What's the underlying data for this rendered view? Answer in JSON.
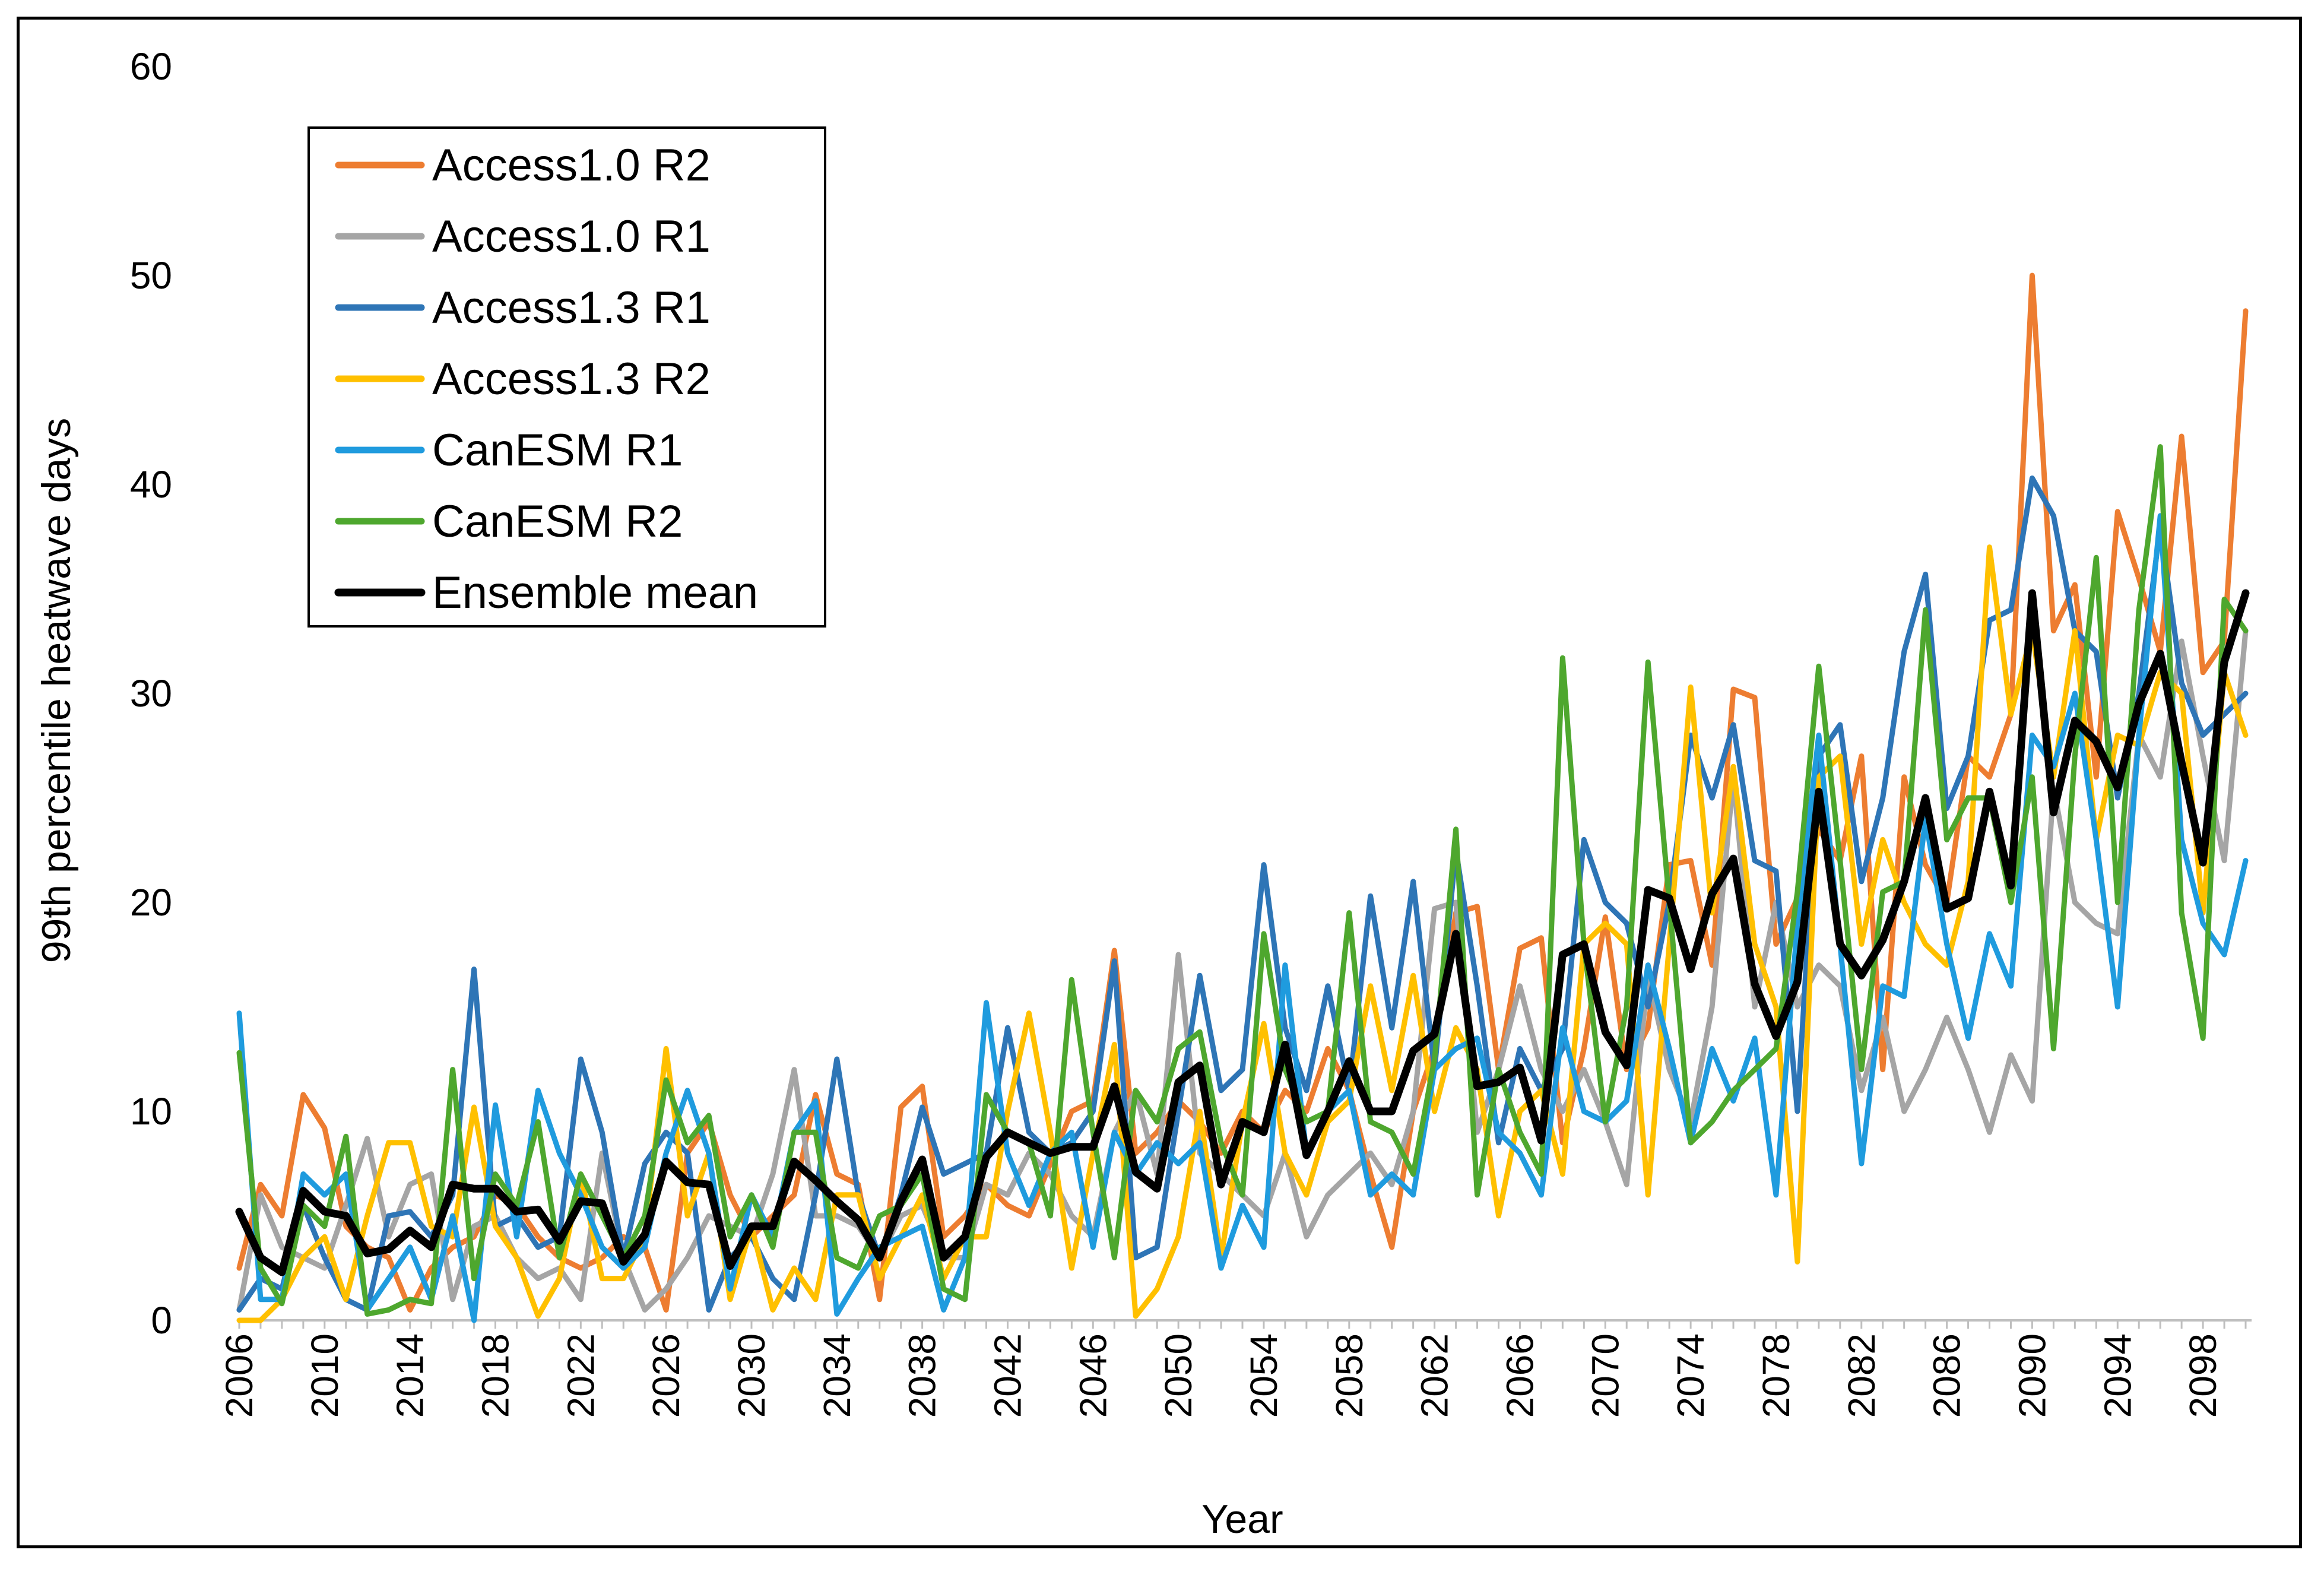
{
  "chart_data": {
    "type": "line",
    "title": "",
    "xlabel": "Year",
    "ylabel": "99th percentile heatwave days",
    "ylim": [
      0,
      60
    ],
    "yticks": [
      0,
      10,
      20,
      30,
      40,
      50,
      60
    ],
    "xlim": [
      2006,
      2100
    ],
    "xticks": [
      2006,
      2010,
      2014,
      2018,
      2022,
      2026,
      2030,
      2034,
      2038,
      2042,
      2046,
      2050,
      2054,
      2058,
      2062,
      2066,
      2070,
      2074,
      2078,
      2082,
      2086,
      2090,
      2094,
      2098
    ],
    "grid": false,
    "legend_position": "top-left",
    "x": [
      2006,
      2007,
      2008,
      2009,
      2010,
      2011,
      2012,
      2013,
      2014,
      2015,
      2016,
      2017,
      2018,
      2019,
      2020,
      2021,
      2022,
      2023,
      2024,
      2025,
      2026,
      2027,
      2028,
      2029,
      2030,
      2031,
      2032,
      2033,
      2034,
      2035,
      2036,
      2037,
      2038,
      2039,
      2040,
      2041,
      2042,
      2043,
      2044,
      2045,
      2046,
      2047,
      2048,
      2049,
      2050,
      2051,
      2052,
      2053,
      2054,
      2055,
      2056,
      2057,
      2058,
      2059,
      2060,
      2061,
      2062,
      2063,
      2064,
      2065,
      2066,
      2067,
      2068,
      2069,
      2070,
      2071,
      2072,
      2073,
      2074,
      2075,
      2076,
      2077,
      2078,
      2079,
      2080,
      2081,
      2082,
      2083,
      2084,
      2085,
      2086,
      2087,
      2088,
      2089,
      2090,
      2091,
      2092,
      2093,
      2094,
      2095,
      2096,
      2097,
      2098,
      2099,
      2100
    ],
    "series": [
      {
        "name": "Access1.0 R2",
        "color": "#ED7D31",
        "values": [
          2.5,
          6.5,
          5.0,
          10.8,
          9.2,
          4.5,
          3.5,
          3.0,
          0.5,
          2.5,
          3.5,
          4.0,
          6.0,
          5.5,
          4.0,
          3.0,
          2.5,
          3.0,
          4.0,
          3.5,
          0.5,
          8.0,
          9.5,
          6.0,
          4.0,
          5.0,
          6.0,
          10.8,
          7.0,
          6.5,
          1.0,
          10.2,
          11.2,
          4.0,
          5.0,
          6.5,
          5.5,
          5.0,
          7.5,
          10.0,
          10.5,
          17.7,
          8.0,
          9.0,
          10.5,
          9.5,
          8.0,
          10.0,
          9.0,
          11.0,
          10.0,
          13.0,
          11.0,
          7.0,
          3.5,
          10.0,
          13.0,
          19.5,
          19.8,
          12.0,
          17.8,
          18.3,
          8.5,
          13.0,
          19.3,
          12.0,
          14.0,
          21.8,
          22.0,
          17.0,
          30.2,
          29.8,
          18.0,
          20.2,
          23.5,
          22.0,
          27.0,
          12.0,
          26.0,
          21.8,
          20.0,
          27.0,
          26.0,
          29.0,
          50.0,
          33.0,
          35.2,
          26.0,
          38.7,
          35.5,
          32.0,
          42.3,
          31.0,
          32.5,
          48.3
        ]
      },
      {
        "name": "Access1.0 R1",
        "color": "#A5A5A5",
        "values": [
          0.5,
          6.0,
          3.5,
          3.0,
          2.5,
          5.5,
          8.7,
          4.0,
          6.5,
          7.0,
          1.0,
          4.5,
          5.0,
          3.0,
          2.0,
          2.5,
          1.0,
          8.0,
          3.0,
          0.5,
          1.5,
          3.0,
          5.0,
          4.5,
          4.0,
          7.0,
          12.0,
          5.0,
          5.0,
          4.5,
          3.0,
          5.0,
          5.5,
          3.0,
          3.0,
          6.5,
          6.0,
          8.0,
          7.0,
          5.0,
          4.0,
          9.0,
          11.0,
          7.0,
          17.5,
          8.0,
          7.0,
          6.0,
          5.0,
          8.0,
          4.0,
          6.0,
          7.0,
          8.0,
          6.5,
          10.0,
          19.7,
          20.0,
          9.0,
          12.0,
          16.0,
          12.0,
          10.0,
          12.0,
          9.5,
          6.5,
          16.5,
          12.0,
          9.5,
          15.0,
          26.0,
          15.0,
          20.0,
          15.0,
          17.0,
          16.0,
          11.0,
          14.5,
          10.0,
          12.0,
          14.5,
          12.0,
          9.0,
          12.7,
          10.5,
          25.5,
          20.0,
          19.0,
          18.5,
          28.0,
          26.0,
          32.5,
          27.0,
          22.0,
          33.0
        ]
      },
      {
        "name": "Access1.3 R1",
        "color": "#2E75B6",
        "values": [
          0.5,
          2.0,
          1.5,
          5.5,
          3.0,
          1.0,
          0.5,
          5.0,
          5.2,
          4.0,
          6.0,
          16.8,
          4.5,
          5.0,
          3.5,
          4.0,
          12.5,
          9.0,
          3.0,
          7.5,
          9.0,
          8.0,
          0.5,
          3.0,
          4.0,
          2.0,
          1.0,
          6.0,
          12.5,
          6.0,
          3.0,
          6.0,
          10.2,
          7.0,
          7.5,
          8.0,
          14.0,
          9.0,
          8.0,
          8.5,
          10.0,
          17.2,
          3.0,
          3.5,
          10.0,
          16.5,
          11.0,
          12.0,
          21.8,
          14.0,
          11.0,
          16.0,
          11.0,
          20.3,
          14.0,
          21.0,
          12.0,
          22.5,
          16.0,
          8.5,
          13.0,
          11.0,
          13.0,
          23.0,
          20.0,
          19.0,
          15.0,
          20.0,
          28.0,
          25.0,
          28.5,
          22.0,
          21.5,
          10.0,
          27.0,
          28.5,
          21.0,
          25.0,
          32.0,
          35.7,
          24.5,
          27.0,
          33.5,
          34.0,
          40.3,
          38.5,
          33.0,
          32.0,
          25.0,
          30.0,
          38.0,
          30.5,
          28.0,
          29.0,
          30.0
        ]
      },
      {
        "name": "Access1.3 R2",
        "color": "#FFC000",
        "values": [
          0.0,
          0.0,
          1.0,
          3.0,
          4.0,
          1.0,
          5.0,
          8.5,
          8.5,
          4.5,
          4.0,
          10.2,
          4.5,
          3.0,
          0.2,
          2.0,
          7.0,
          2.0,
          2.0,
          4.0,
          13.0,
          5.0,
          8.0,
          1.0,
          4.5,
          0.5,
          2.5,
          1.0,
          6.0,
          6.0,
          2.0,
          4.0,
          6.0,
          2.0,
          4.0,
          4.0,
          10.0,
          14.7,
          9.0,
          2.5,
          8.0,
          13.2,
          0.2,
          1.5,
          4.0,
          10.0,
          3.0,
          9.5,
          14.2,
          8.0,
          6.0,
          9.5,
          10.5,
          16.0,
          11.0,
          16.5,
          10.0,
          14.0,
          12.0,
          5.0,
          10.0,
          11.0,
          7.0,
          18.0,
          19.0,
          18.0,
          6.0,
          18.0,
          30.3,
          19.5,
          26.5,
          18.0,
          15.0,
          2.8,
          26.0,
          27.0,
          18.0,
          23.0,
          20.0,
          18.0,
          17.0,
          21.0,
          37.0,
          29.0,
          33.0,
          26.0,
          33.0,
          23.0,
          28.0,
          27.5,
          31.0,
          30.0,
          19.5,
          31.0,
          28.0
        ]
      },
      {
        "name": "CanESM R1",
        "color": "#1F9BDE",
        "values": [
          14.7,
          1.0,
          1.0,
          7.0,
          6.0,
          7.0,
          0.5,
          2.0,
          3.5,
          1.0,
          5.0,
          0.0,
          10.3,
          4.0,
          11.0,
          8.0,
          6.0,
          3.5,
          2.5,
          3.5,
          8.0,
          11.0,
          8.0,
          1.5,
          6.0,
          4.0,
          9.0,
          10.5,
          0.3,
          2.0,
          3.5,
          4.0,
          4.5,
          0.5,
          3.0,
          15.2,
          8.0,
          5.5,
          8.0,
          9.0,
          3.5,
          9.0,
          7.0,
          8.5,
          7.5,
          8.5,
          2.5,
          5.5,
          3.5,
          17.0,
          8.0,
          10.0,
          11.0,
          6.0,
          7.0,
          6.0,
          12.0,
          13.0,
          13.5,
          9.0,
          8.0,
          6.0,
          14.0,
          10.0,
          9.5,
          10.5,
          17.0,
          13.0,
          8.5,
          13.0,
          10.5,
          13.5,
          6.0,
          19.0,
          28.0,
          18.0,
          7.5,
          16.0,
          15.5,
          24.0,
          18.0,
          13.5,
          18.5,
          16.0,
          28.0,
          26.5,
          30.0,
          23.0,
          15.0,
          28.0,
          38.5,
          23.0,
          19.0,
          17.5,
          22.0
        ]
      },
      {
        "name": "CanESM R2",
        "color": "#4EA72E",
        "values": [
          12.8,
          2.5,
          0.8,
          5.5,
          4.5,
          8.8,
          0.3,
          0.5,
          1.0,
          0.8,
          12.0,
          2.0,
          7.0,
          5.5,
          9.5,
          3.0,
          7.0,
          5.0,
          3.0,
          5.0,
          11.5,
          8.5,
          9.8,
          4.0,
          6.0,
          3.5,
          9.0,
          9.0,
          3.0,
          2.5,
          5.0,
          5.5,
          7.0,
          1.5,
          1.0,
          10.8,
          9.0,
          8.5,
          5.0,
          16.3,
          9.0,
          3.0,
          11.0,
          9.5,
          13.0,
          13.8,
          8.5,
          6.0,
          18.5,
          12.0,
          9.5,
          10.0,
          19.5,
          9.5,
          9.0,
          7.0,
          12.5,
          23.5,
          6.0,
          12.0,
          9.0,
          7.0,
          31.7,
          18.0,
          9.5,
          15.0,
          31.5,
          20.0,
          8.5,
          9.5,
          11.0,
          12.0,
          13.0,
          20.5,
          31.3,
          22.0,
          12.0,
          20.5,
          21.0,
          34.0,
          23.0,
          25.0,
          25.0,
          20.0,
          26.0,
          13.0,
          27.0,
          36.5,
          20.0,
          34.0,
          41.8,
          19.5,
          13.5,
          34.5,
          33.0
        ]
      },
      {
        "name": "Ensemble mean",
        "color": "#000000",
        "values": [
          5.2,
          3.0,
          2.3,
          6.2,
          5.2,
          5.0,
          3.2,
          3.4,
          4.3,
          3.5,
          6.5,
          6.3,
          6.3,
          5.2,
          5.3,
          3.8,
          5.7,
          5.6,
          2.8,
          4.1,
          7.6,
          6.6,
          6.5,
          2.6,
          4.5,
          4.5,
          7.6,
          6.7,
          5.7,
          4.8,
          3.0,
          5.7,
          7.7,
          3.0,
          4.0,
          7.8,
          9.0,
          8.5,
          8.0,
          8.3,
          8.3,
          11.2,
          7.1,
          6.3,
          11.4,
          12.2,
          6.5,
          9.5,
          9.0,
          13.2,
          7.9,
          10.0,
          12.4,
          10.0,
          10.0,
          12.9,
          13.7,
          18.5,
          11.2,
          11.4,
          12.1,
          8.6,
          17.5,
          18.0,
          13.8,
          12.2,
          20.6,
          20.2,
          16.8,
          20.4,
          22.1,
          16.1,
          13.6,
          16.2,
          25.3,
          18.0,
          16.5,
          18.2,
          21.0,
          25.0,
          19.7,
          20.2,
          25.3,
          20.8,
          34.8,
          24.3,
          28.7,
          27.7,
          25.5,
          29.5,
          31.9,
          26.7,
          21.9,
          31.5,
          34.8
        ]
      }
    ]
  }
}
